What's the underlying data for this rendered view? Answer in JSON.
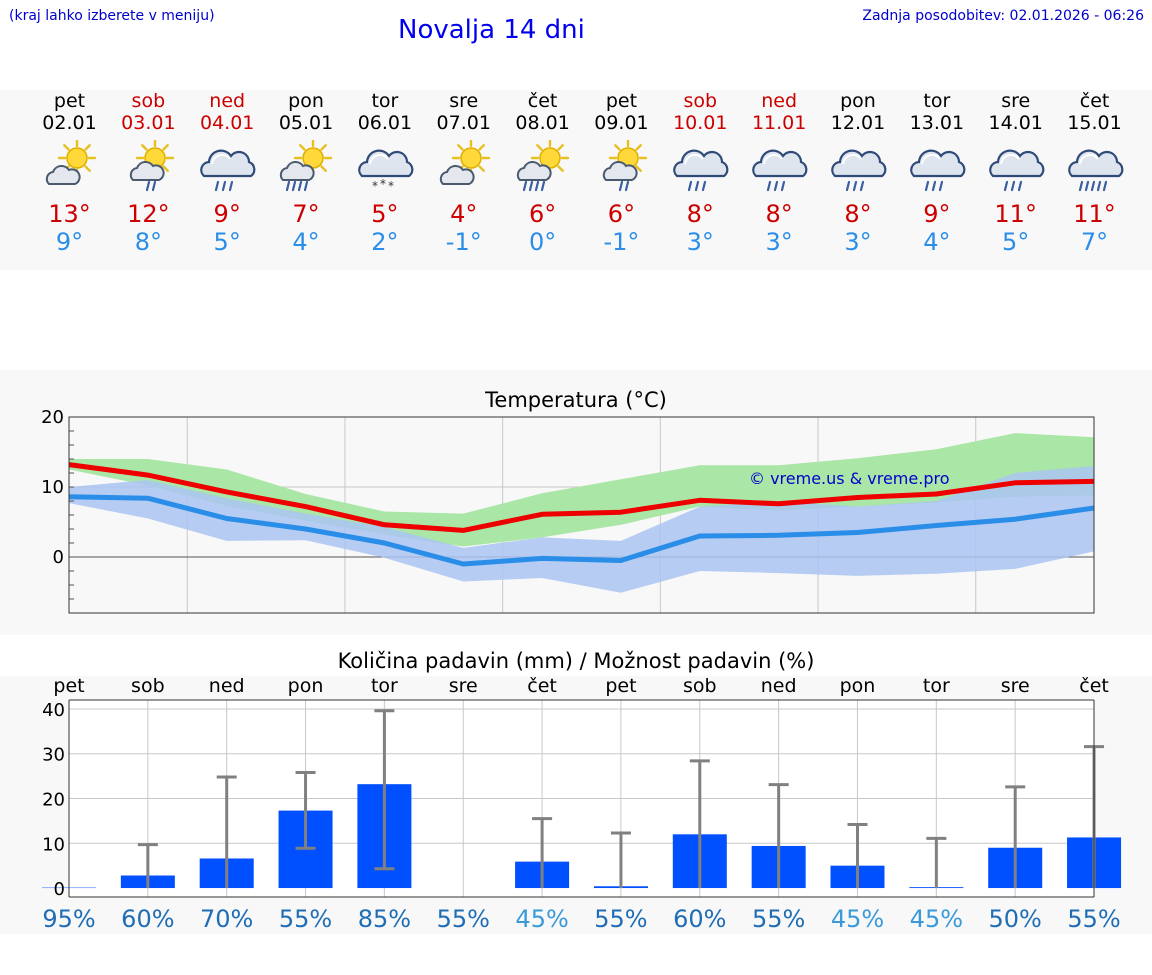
{
  "header": {
    "hint": "(kraj lahko izberete v meniju)",
    "title": "Novalja 14 dni",
    "update": "Zadnja posodobitev: 02.01.2026 - 06:26"
  },
  "days": [
    {
      "day": "pet",
      "date": "02.01",
      "weekend": false,
      "icon": "sun-cloud-icon",
      "tmax": "13°",
      "tmin": "9°",
      "prob": "95%",
      "probColor": "#1f6db5"
    },
    {
      "day": "sob",
      "date": "03.01",
      "weekend": true,
      "icon": "sun-cloud-rain-icon",
      "tmax": "12°",
      "tmin": "8°",
      "prob": "60%",
      "probColor": "#1f6db5"
    },
    {
      "day": "ned",
      "date": "04.01",
      "weekend": true,
      "icon": "cloud-rain-icon",
      "tmax": "9°",
      "tmin": "5°",
      "prob": "70%",
      "probColor": "#1f6db5"
    },
    {
      "day": "pon",
      "date": "05.01",
      "weekend": false,
      "icon": "sun-cloud-heavy-rain-icon",
      "tmax": "7°",
      "tmin": "4°",
      "prob": "55%",
      "probColor": "#1f6db5"
    },
    {
      "day": "tor",
      "date": "06.01",
      "weekend": false,
      "icon": "cloud-snow-icon",
      "tmax": "5°",
      "tmin": "2°",
      "prob": "85%",
      "probColor": "#1f6db5"
    },
    {
      "day": "sre",
      "date": "07.01",
      "weekend": false,
      "icon": "sun-cloud-icon",
      "tmax": "4°",
      "tmin": "-1°",
      "prob": "55%",
      "probColor": "#1f6db5"
    },
    {
      "day": "čet",
      "date": "08.01",
      "weekend": false,
      "icon": "sun-cloud-heavy-rain-icon",
      "tmax": "6°",
      "tmin": "0°",
      "prob": "45%",
      "probColor": "#3a9ad9"
    },
    {
      "day": "pet",
      "date": "09.01",
      "weekend": false,
      "icon": "sun-cloud-rain-icon",
      "tmax": "6°",
      "tmin": "-1°",
      "prob": "55%",
      "probColor": "#1f6db5"
    },
    {
      "day": "sob",
      "date": "10.01",
      "weekend": true,
      "icon": "cloud-rain-icon",
      "tmax": "8°",
      "tmin": "3°",
      "prob": "60%",
      "probColor": "#1f6db5"
    },
    {
      "day": "ned",
      "date": "11.01",
      "weekend": true,
      "icon": "cloud-rain-icon",
      "tmax": "8°",
      "tmin": "3°",
      "prob": "55%",
      "probColor": "#1f6db5"
    },
    {
      "day": "pon",
      "date": "12.01",
      "weekend": false,
      "icon": "cloud-rain-icon",
      "tmax": "8°",
      "tmin": "3°",
      "prob": "45%",
      "probColor": "#3a9ad9"
    },
    {
      "day": "tor",
      "date": "13.01",
      "weekend": false,
      "icon": "cloud-rain-icon",
      "tmax": "9°",
      "tmin": "4°",
      "prob": "45%",
      "probColor": "#3a9ad9"
    },
    {
      "day": "sre",
      "date": "14.01",
      "weekend": false,
      "icon": "cloud-rain-icon",
      "tmax": "11°",
      "tmin": "5°",
      "prob": "50%",
      "probColor": "#1f6db5"
    },
    {
      "day": "čet",
      "date": "15.01",
      "weekend": false,
      "icon": "cloud-heavy-rain-icon",
      "tmax": "11°",
      "tmin": "7°",
      "prob": "55%",
      "probColor": "#1f6db5"
    }
  ],
  "colors": {
    "max": "#ee0000",
    "min": "#2a8ee8",
    "maxBand": "#aae6a6",
    "minBand": "#aac4f2",
    "overlap": "#7ec4a8",
    "bar": "#0050ff",
    "whisker": "#808080",
    "watermark": "#0000cc"
  },
  "chart_data": [
    {
      "type": "line",
      "title": "Temperatura (°C)",
      "watermark": "© vreme.us & vreme.pro",
      "ylim": [
        -8,
        20
      ],
      "yticks": [
        0,
        10,
        20
      ],
      "ytick_labels": [
        "0",
        "10",
        "20"
      ],
      "x": [
        0,
        1,
        2,
        3,
        4,
        5,
        6,
        7,
        8,
        9,
        10,
        11,
        12,
        13
      ],
      "series": [
        {
          "name": "max",
          "values": [
            13.2,
            11.7,
            9.3,
            7.2,
            4.6,
            3.8,
            6.1,
            6.4,
            8.1,
            7.6,
            8.5,
            9.0,
            10.6,
            10.8
          ]
        },
        {
          "name": "min",
          "values": [
            8.6,
            8.4,
            5.5,
            4.0,
            2.0,
            -1.0,
            -0.2,
            -0.5,
            3.0,
            3.1,
            3.5,
            4.5,
            5.4,
            7.0
          ]
        }
      ],
      "bands": [
        {
          "name": "max-range",
          "upper": [
            14,
            14,
            12.5,
            9,
            6.5,
            6.2,
            9.1,
            11.1,
            13.1,
            13.1,
            14.1,
            15.4,
            17.7,
            17.1
          ],
          "lower": [
            12.5,
            10.2,
            7.3,
            5.2,
            3.2,
            1.5,
            2.8,
            4.6,
            7.2,
            6.6,
            7.2,
            7.8,
            8.6,
            8.8
          ]
        },
        {
          "name": "min-range",
          "upper": [
            10,
            11,
            8.4,
            6.2,
            4.3,
            1.3,
            2.8,
            2.3,
            7.2,
            8.0,
            7.2,
            8.0,
            12.0,
            13.0
          ],
          "lower": [
            7.7,
            5.5,
            2.3,
            2.4,
            -0.1,
            -3.5,
            -3.0,
            -5.1,
            -2.0,
            -2.3,
            -2.7,
            -2.4,
            -1.7,
            0.8
          ]
        }
      ]
    },
    {
      "type": "bar",
      "title": "Količina padavin (mm) / Možnost padavin (%)",
      "ylim": [
        -2,
        42
      ],
      "yticks": [
        0,
        10,
        20,
        30,
        40
      ],
      "ytick_labels": [
        "0",
        "10",
        "20",
        "30",
        "40"
      ],
      "categories": [
        "pet",
        "sob",
        "ned",
        "pon",
        "tor",
        "sre",
        "čet",
        "pet",
        "sob",
        "ned",
        "pon",
        "tor",
        "sre",
        "čet"
      ],
      "values": [
        0.1,
        2.8,
        6.6,
        17.3,
        23.2,
        0,
        5.9,
        0.4,
        12.0,
        9.4,
        5.0,
        0.2,
        9.0,
        11.3
      ],
      "error_low": [
        0,
        0,
        0,
        8.9,
        4.3,
        0,
        0,
        0,
        0,
        0,
        0,
        0,
        0,
        0
      ],
      "error_high": [
        0,
        9.7,
        24.8,
        25.8,
        39.6,
        0,
        15.5,
        12.3,
        28.4,
        23.1,
        14.2,
        11.1,
        22.6,
        31.6
      ],
      "probabilities": [
        "95%",
        "60%",
        "70%",
        "55%",
        "85%",
        "55%",
        "45%",
        "55%",
        "60%",
        "55%",
        "45%",
        "45%",
        "50%",
        "55%"
      ]
    }
  ]
}
